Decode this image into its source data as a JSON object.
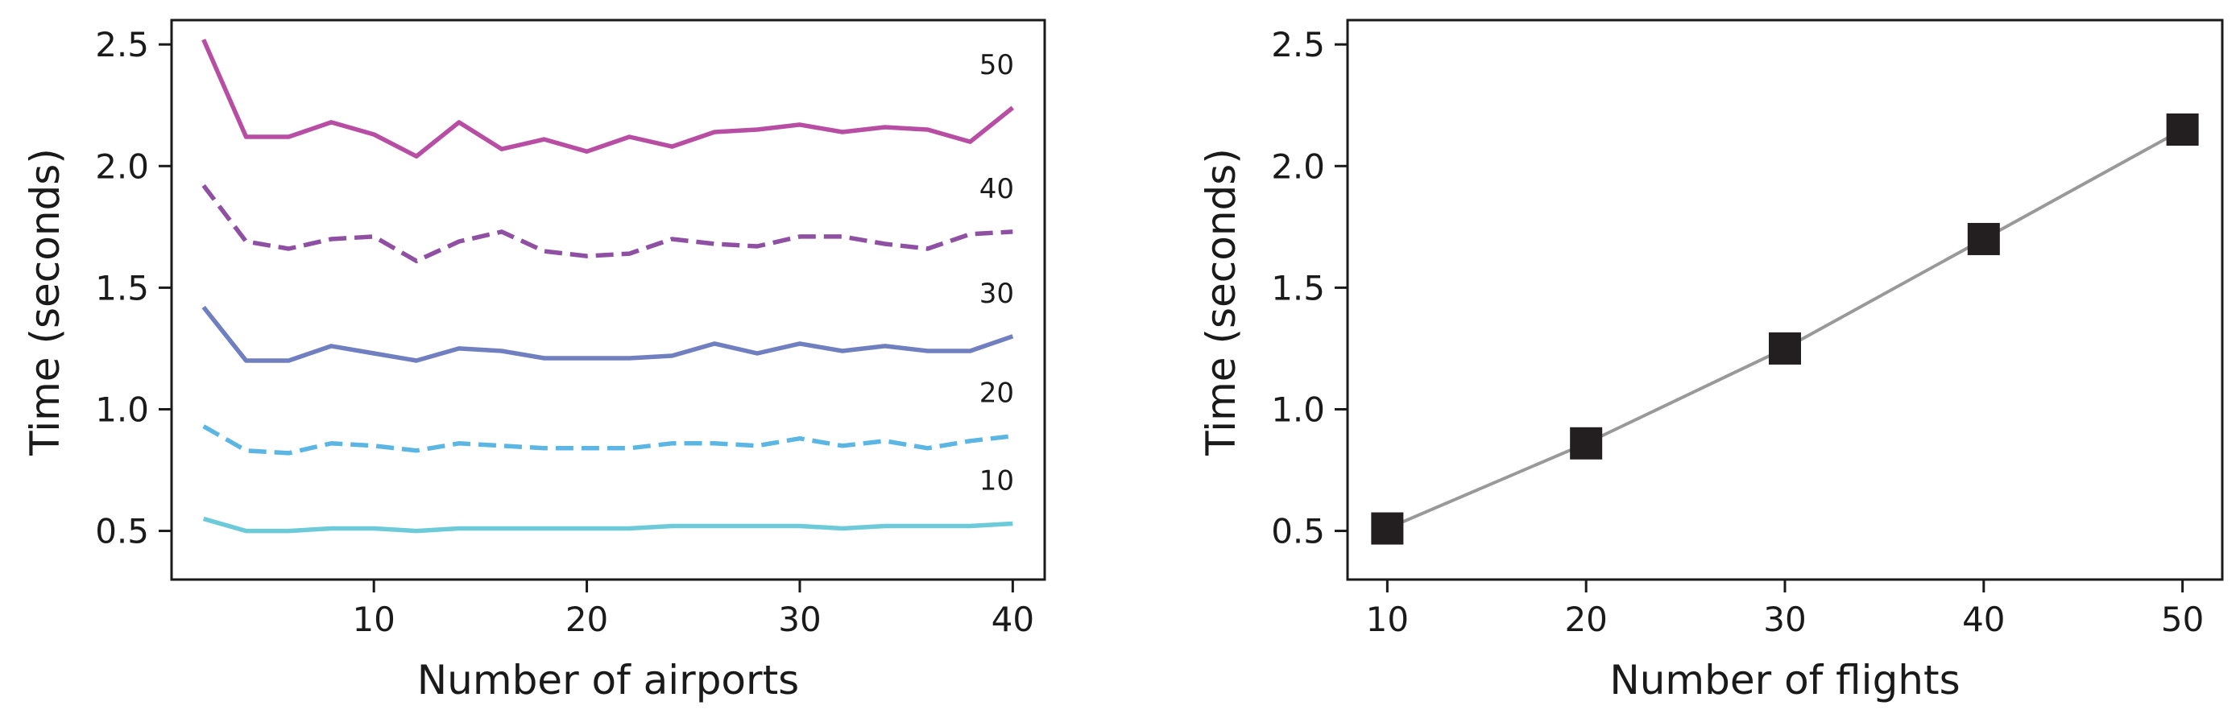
{
  "chart_data": [
    {
      "type": "line",
      "xlabel": "Number of airports",
      "ylabel": "Time (seconds)",
      "xlim": [
        0.5,
        41.5
      ],
      "ylim": [
        0.3,
        2.6
      ],
      "xticks": [
        10,
        20,
        30,
        40
      ],
      "yticks": [
        0.5,
        1.0,
        1.5,
        2.0,
        2.5
      ],
      "xtick_labels": [
        "10",
        "20",
        "30",
        "40"
      ],
      "ytick_labels": [
        "0.5",
        "1.0",
        "1.5",
        "2.0",
        "2.5"
      ],
      "x": [
        2,
        4,
        6,
        8,
        10,
        12,
        14,
        16,
        18,
        20,
        22,
        24,
        26,
        28,
        30,
        32,
        34,
        36,
        38,
        40
      ],
      "series": [
        {
          "name": "10",
          "label": "10",
          "style": "solid",
          "color": "#6ccad9",
          "values": [
            0.55,
            0.5,
            0.5,
            0.51,
            0.51,
            0.5,
            0.51,
            0.51,
            0.51,
            0.51,
            0.51,
            0.52,
            0.52,
            0.52,
            0.52,
            0.51,
            0.52,
            0.52,
            0.52,
            0.53
          ]
        },
        {
          "name": "20",
          "label": "20",
          "style": "dashed",
          "color": "#5bb6e4",
          "values": [
            0.93,
            0.83,
            0.82,
            0.86,
            0.85,
            0.83,
            0.86,
            0.85,
            0.84,
            0.84,
            0.84,
            0.86,
            0.86,
            0.85,
            0.88,
            0.85,
            0.87,
            0.84,
            0.87,
            0.89
          ]
        },
        {
          "name": "30",
          "label": "30",
          "style": "solid",
          "color": "#6f7fbf",
          "values": [
            1.42,
            1.2,
            1.2,
            1.26,
            1.23,
            1.2,
            1.25,
            1.24,
            1.21,
            1.21,
            1.21,
            1.22,
            1.27,
            1.23,
            1.27,
            1.24,
            1.26,
            1.24,
            1.24,
            1.3
          ]
        },
        {
          "name": "40",
          "label": "40",
          "style": "dashed",
          "color": "#8f4fa3",
          "values": [
            1.92,
            1.69,
            1.66,
            1.7,
            1.71,
            1.61,
            1.69,
            1.73,
            1.65,
            1.63,
            1.64,
            1.7,
            1.68,
            1.67,
            1.71,
            1.71,
            1.68,
            1.66,
            1.72,
            1.73
          ]
        },
        {
          "name": "50",
          "label": "50",
          "style": "solid",
          "color": "#b84ea3",
          "values": [
            2.52,
            2.12,
            2.12,
            2.18,
            2.13,
            2.04,
            2.18,
            2.07,
            2.11,
            2.06,
            2.12,
            2.08,
            2.14,
            2.15,
            2.17,
            2.14,
            2.16,
            2.15,
            2.1,
            2.24
          ]
        }
      ]
    },
    {
      "type": "line",
      "xlabel": "Number of flights",
      "ylabel": "Time (seconds)",
      "xlim": [
        8,
        52
      ],
      "ylim": [
        0.3,
        2.6
      ],
      "xticks": [
        10,
        20,
        30,
        40,
        50
      ],
      "yticks": [
        0.5,
        1.0,
        1.5,
        2.0,
        2.5
      ],
      "xtick_labels": [
        "10",
        "20",
        "30",
        "40",
        "50"
      ],
      "ytick_labels": [
        "0.5",
        "1.0",
        "1.5",
        "2.0",
        "2.5"
      ],
      "x": [
        10,
        20,
        30,
        40,
        50
      ],
      "series": [
        {
          "name": "time",
          "style": "solid",
          "color": "#999999",
          "marker": "square",
          "marker_color": "#231f20",
          "values": [
            0.51,
            0.86,
            1.25,
            1.7,
            2.15
          ]
        }
      ]
    }
  ]
}
